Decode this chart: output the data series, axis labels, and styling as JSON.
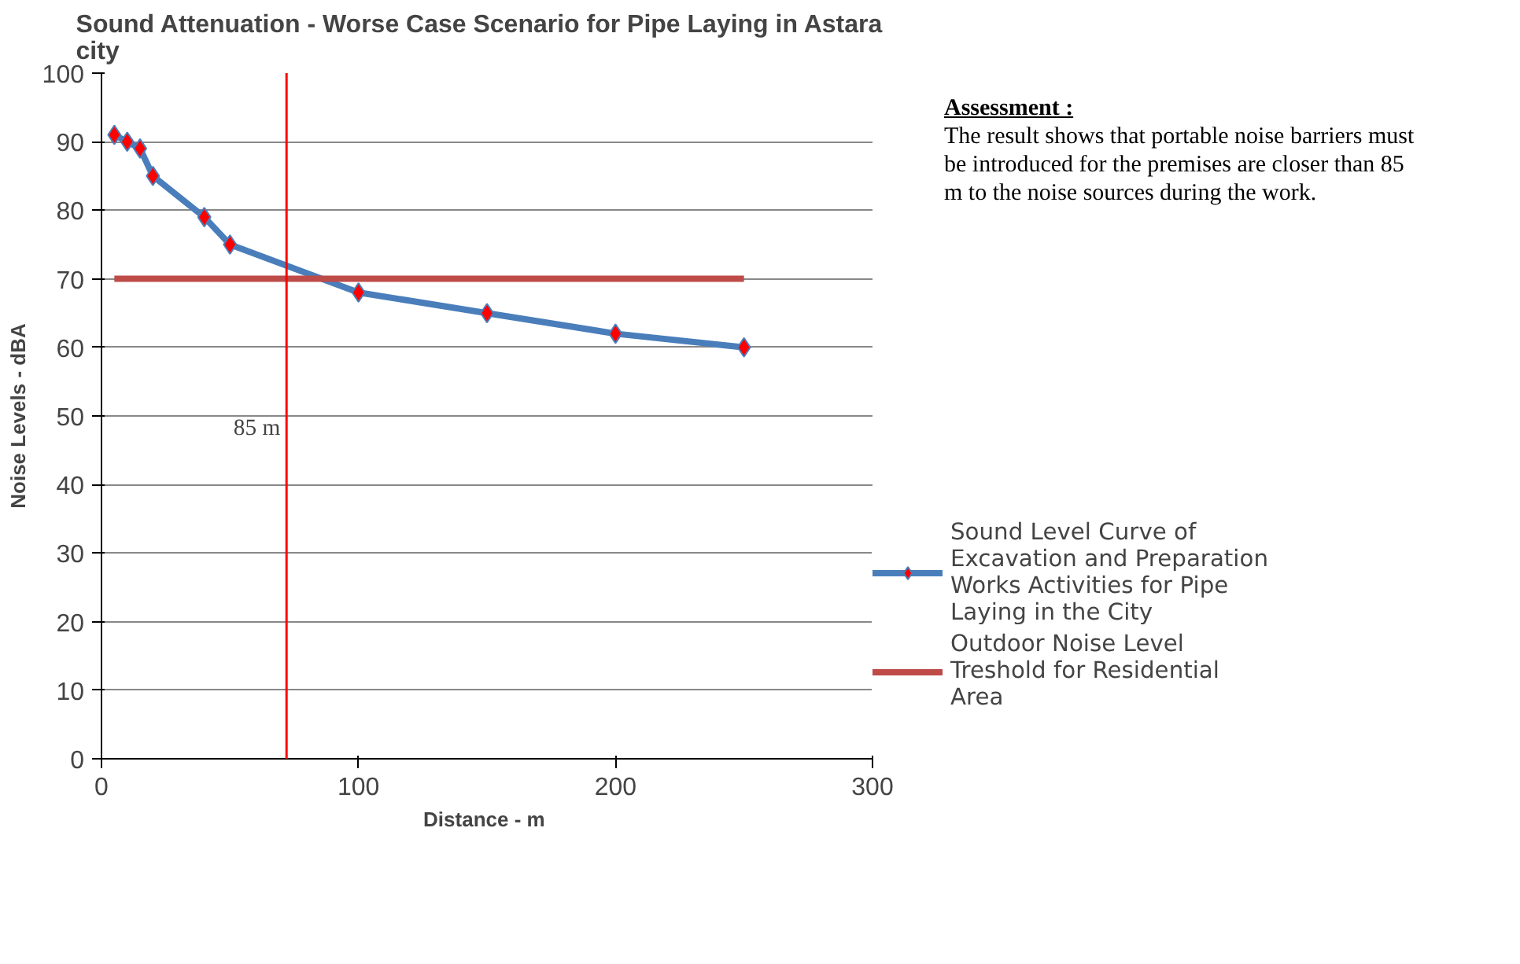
{
  "chart_data": {
    "type": "line",
    "title": "Sound Attenuation  - Worse Case Scenario for Pipe Laying in  Astara city",
    "xlabel": "Distance  - m",
    "ylabel": "Noise Levels - dBA",
    "xlim": [
      0,
      300
    ],
    "xticks": [
      0,
      100,
      200,
      300
    ],
    "ylim": [
      0,
      100
    ],
    "yticks": [
      0,
      10,
      20,
      30,
      40,
      50,
      60,
      70,
      80,
      90,
      100
    ],
    "grid": "y",
    "legend": "right",
    "line_style": "solid",
    "series": [
      {
        "name": "Sound Level Curve of Excavation and Preparation Works Activities for Pipe Laying in the City",
        "color": "#4a7ebb",
        "marker": "diamond",
        "x": [
          5,
          10,
          15,
          20,
          40,
          50,
          100,
          150,
          200,
          250
        ],
        "values": [
          91,
          90,
          89,
          85,
          79,
          75,
          68,
          65,
          62,
          60
        ]
      },
      {
        "name": "Outdoor Noise Level Treshold for Residential Area",
        "color": "#be4b48",
        "x": [
          5,
          250
        ],
        "values": [
          70,
          70
        ]
      }
    ],
    "ref_lines": [
      {
        "axis": "x",
        "value": 72,
        "label": "85 m",
        "color": "#ff0000"
      }
    ],
    "annotations": [
      "Assessment :",
      "The result shows that portable noise barriers must be introduced for the premises are closer than 85 m to the noise sources during  the work."
    ]
  }
}
